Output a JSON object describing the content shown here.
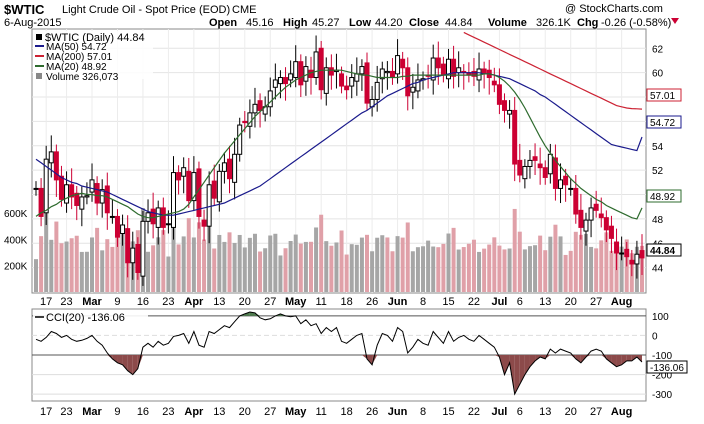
{
  "header": {
    "symbol": "$WTIC",
    "name": "Light Crude Oil - Spot Price (EOD)",
    "exchange": "CME",
    "date": "6-Aug-2015",
    "watermark": "@ StockCharts.com",
    "open_label": "Open",
    "open": "45.16",
    "high_label": "High",
    "high": "45.27",
    "low_label": "Low",
    "low": "44.20",
    "close_label": "Close",
    "close": "44.84",
    "volume_label": "Volume",
    "volume": "326.1K",
    "chg_label": "Chg",
    "chg": "-0.26 (-0.58%)"
  },
  "legend": {
    "main": "$WTIC (Daily) 44.84",
    "ma50": "MA(50) 54.72",
    "ma200": "MA(200) 57.01",
    "ma20": "MA(20) 48.92",
    "volume": "Volume 326,073"
  },
  "badges": {
    "ma200": "57.01",
    "ma50": "54.72",
    "ma20": "48.92",
    "last": "44.84",
    "cci": "-136.06"
  },
  "cci_legend": "CCI(20) -136.06",
  "colors": {
    "up": "#000000",
    "down": "#cc0033",
    "ma50": "#1a1a8c",
    "ma200": "#cc2233",
    "ma20": "#2e6b2e",
    "vol_up": "#a6a6a6",
    "vol_down": "#e0a0a8",
    "cci_pos": "#4d7a4d",
    "cci_neg": "#8c4a4a"
  },
  "chart_data": [
    {
      "type": "candlestick",
      "title": "$WTIC Light Crude Oil - Spot Price (EOD)",
      "ylim": [
        42,
        63.5
      ],
      "y_ticks": [
        44,
        46,
        48,
        50,
        52,
        54,
        56,
        58,
        60,
        62
      ],
      "x_tick_labels": [
        "17",
        "23",
        "Mar",
        "9",
        "16",
        "23",
        "Apr",
        "13",
        "20",
        "27",
        "May",
        "11",
        "18",
        "26",
        "Jun",
        "8",
        "15",
        "22",
        "Jul",
        "6",
        "13",
        "20",
        "27",
        "Aug"
      ],
      "x_tick_index": [
        2,
        6,
        11,
        16,
        21,
        26,
        31,
        36,
        41,
        46,
        51,
        56,
        61,
        66,
        71,
        76,
        81,
        86,
        91,
        95,
        100,
        105,
        110,
        115
      ],
      "close": [
        50.5,
        48.2,
        52.9,
        53.5,
        51.2,
        49.6,
        50.8,
        49.8,
        49.1,
        49.8,
        49.9,
        51.2,
        49.3,
        50.4,
        48.5,
        48.2,
        46.5,
        47.5,
        44.4,
        45.6,
        43.6,
        47.8,
        48.5,
        47.6,
        48.9,
        47.3,
        47.6,
        51.8,
        51.2,
        52.2,
        49.5,
        51.8,
        48.2,
        47.4,
        50.8,
        49.7,
        51.9,
        52.6,
        51.3,
        53.3,
        55.7,
        55.9,
        56.7,
        57.4,
        56.9,
        57.2,
        58.5,
        59.4,
        59.6,
        59.1,
        59.9,
        60.9,
        59.0,
        60.5,
        59.6,
        61.7,
        58.6,
        60.4,
        59.8,
        60.2,
        58.9,
        58.6,
        59.6,
        59.9,
        60.5,
        57.5,
        57.8,
        59.2,
        60.3,
        60.1,
        59.6,
        61.4,
        60.4,
        58.1,
        58.8,
        59.4,
        59.5,
        59.7,
        61.2,
        60.4,
        59.8,
        61.1,
        59.7,
        60.4,
        60.0,
        59.8,
        59.7,
        60.3,
        59.9,
        59.6,
        59.0,
        57.4,
        56.9,
        56.9,
        52.5,
        51.6,
        52.3,
        52.8,
        52.8,
        52.2,
        51.4,
        53.3,
        50.5,
        51.2,
        50.8,
        50.5,
        48.4,
        47.3,
        47.9,
        48.9,
        48.7,
        48.1,
        47.1,
        46.4,
        45.2,
        45.2,
        44.9,
        44.3,
        45.1,
        44.8
      ],
      "ma20": [
        48.2,
        48.5,
        48.7,
        49.0,
        49.2,
        49.5,
        49.7,
        49.9,
        50.0,
        50.1,
        50.0,
        50.0,
        49.9,
        49.9,
        49.8,
        49.6,
        49.4,
        49.2,
        49.0,
        48.7,
        48.4,
        48.2,
        48.1,
        48.1,
        48.2,
        48.3,
        48.4,
        48.5,
        48.6,
        48.8,
        49.2,
        49.8,
        50.4,
        51.0,
        51.6,
        52.2,
        52.8,
        53.4,
        53.9,
        54.4,
        54.9,
        55.4,
        55.9,
        56.4,
        56.8,
        57.2,
        57.6,
        58.0,
        58.4,
        58.8,
        59.1,
        59.4,
        59.6,
        59.8,
        60.0,
        60.1,
        60.2,
        60.2,
        60.2,
        60.2,
        60.2,
        60.1,
        60.0,
        59.9,
        59.8,
        59.8,
        59.7,
        59.6,
        59.6,
        59.6,
        59.6,
        59.6,
        59.7,
        59.7,
        59.8,
        59.8,
        59.8,
        59.8,
        59.8,
        59.8,
        59.8,
        59.8,
        59.8,
        59.8,
        59.8,
        59.8,
        59.8,
        59.8,
        59.9,
        59.9,
        59.8,
        59.6,
        59.3,
        58.9,
        58.4,
        57.8,
        57.1,
        56.3,
        55.5,
        54.7,
        54.0,
        53.4,
        52.8,
        52.3,
        51.8,
        51.3,
        50.9,
        50.5,
        50.2,
        49.9,
        49.6,
        49.4,
        49.1,
        48.9,
        48.7,
        48.5,
        48.3,
        48.1,
        48.0,
        48.9
      ],
      "ma50": [
        52.9,
        52.6,
        52.3,
        52.0,
        51.7,
        51.4,
        51.2,
        51.0,
        50.9,
        50.7,
        50.6,
        50.5,
        50.4,
        50.3,
        50.2,
        50.0,
        49.8,
        49.6,
        49.4,
        49.2,
        49.0,
        48.8,
        48.6,
        48.5,
        48.4,
        48.3,
        48.3,
        48.3,
        48.4,
        48.5,
        48.6,
        48.7,
        48.8,
        48.9,
        49.0,
        49.1,
        49.2,
        49.3,
        49.5,
        49.7,
        49.9,
        50.1,
        50.3,
        50.5,
        50.7,
        51.0,
        51.3,
        51.6,
        51.9,
        52.2,
        52.5,
        52.8,
        53.1,
        53.4,
        53.7,
        54.0,
        54.3,
        54.6,
        54.9,
        55.2,
        55.5,
        55.8,
        56.1,
        56.4,
        56.7,
        56.9,
        57.2,
        57.5,
        57.8,
        58.1,
        58.3,
        58.5,
        58.7,
        58.9,
        59.1,
        59.2,
        59.4,
        59.5,
        59.6,
        59.7,
        59.8,
        59.9,
        60.0,
        60.0,
        60.0,
        60.0,
        60.0,
        60.0,
        59.9,
        59.9,
        59.8,
        59.7,
        59.6,
        59.5,
        59.3,
        59.1,
        58.9,
        58.7,
        58.5,
        58.2,
        58.0,
        57.7,
        57.4,
        57.1,
        56.8,
        56.5,
        56.2,
        55.9,
        55.6,
        55.3,
        55.0,
        54.7,
        54.4,
        54.1,
        54.0,
        53.9,
        53.8,
        53.7,
        53.6,
        54.72
      ],
      "ma200": [
        null,
        null,
        null,
        null,
        null,
        null,
        null,
        null,
        null,
        null,
        null,
        null,
        null,
        null,
        null,
        null,
        null,
        null,
        null,
        null,
        null,
        null,
        null,
        null,
        null,
        null,
        null,
        null,
        null,
        null,
        null,
        null,
        null,
        null,
        null,
        null,
        null,
        null,
        null,
        null,
        null,
        null,
        null,
        null,
        null,
        null,
        null,
        null,
        null,
        null,
        null,
        null,
        null,
        null,
        null,
        null,
        null,
        null,
        null,
        null,
        null,
        null,
        null,
        null,
        null,
        null,
        null,
        null,
        null,
        null,
        null,
        null,
        null,
        null,
        null,
        null,
        null,
        null,
        null,
        null,
        null,
        null,
        null,
        null,
        63.3,
        63.1,
        62.9,
        62.7,
        62.5,
        62.3,
        62.1,
        61.9,
        61.7,
        61.5,
        61.3,
        61.1,
        60.9,
        60.7,
        60.5,
        60.3,
        60.1,
        59.9,
        59.7,
        59.5,
        59.3,
        59.1,
        58.9,
        58.7,
        58.5,
        58.3,
        58.1,
        57.9,
        57.7,
        57.5,
        57.3,
        57.2,
        57.1,
        57.05,
        57.03,
        57.01
      ],
      "volume_ticks": [
        "200K",
        "400K",
        "600K"
      ]
    },
    {
      "type": "line",
      "title": "CCI(20)",
      "ylim": [
        -330,
        130
      ],
      "y_ticks": [
        -300,
        -200,
        -100,
        0,
        100
      ],
      "values": [
        -20,
        -30,
        -10,
        20,
        10,
        -10,
        0,
        -20,
        -30,
        -25,
        -15,
        0,
        -30,
        -50,
        -90,
        -120,
        -140,
        -150,
        -180,
        -200,
        -170,
        -60,
        -40,
        -60,
        -30,
        -50,
        -40,
        -5,
        0,
        10,
        -40,
        20,
        -50,
        -60,
        20,
        10,
        30,
        50,
        40,
        70,
        100,
        110,
        120,
        115,
        90,
        80,
        85,
        100,
        110,
        100,
        95,
        100,
        60,
        80,
        50,
        60,
        10,
        40,
        20,
        40,
        -30,
        -40,
        -20,
        0,
        10,
        -120,
        -150,
        -50,
        10,
        0,
        -30,
        40,
        20,
        -90,
        -60,
        -20,
        -40,
        -50,
        20,
        -10,
        -40,
        20,
        -30,
        -10,
        0,
        -20,
        -30,
        0,
        -20,
        -40,
        -60,
        -110,
        -200,
        -140,
        -300,
        -250,
        -200,
        -160,
        -130,
        -110,
        -120,
        -70,
        -90,
        -70,
        -80,
        -90,
        -120,
        -140,
        -110,
        -80,
        -70,
        -80,
        -120,
        -140,
        -160,
        -150,
        -130,
        -130,
        -110,
        -136
      ]
    }
  ]
}
